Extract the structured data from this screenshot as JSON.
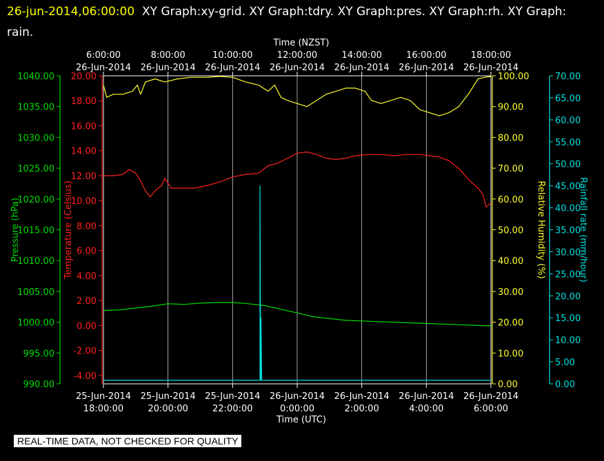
{
  "header": {
    "timestamp": "26-jun-2014,06:00:00",
    "title": "XY Graph:xy-grid.  XY Graph:tdry.  XY Graph:pres.  XY Graph:rh.  XY Graph: rain."
  },
  "qc_notice": "REAL-TIME DATA, NOT CHECKED FOR QUALITY",
  "colors": {
    "pressure": "#00dd00",
    "temperature": "#ff2020",
    "humidity": "#ffff30",
    "rain": "#00e0e0",
    "grid": "#d0d0d0"
  },
  "chart_data": {
    "type": "line",
    "top_axis": {
      "label": "Time (NZST)",
      "ticks": [
        {
          "time": "6:00:00",
          "date": "26-Jun-2014"
        },
        {
          "time": "8:00:00",
          "date": "26-Jun-2014"
        },
        {
          "time": "10:00:00",
          "date": "26-Jun-2014"
        },
        {
          "time": "12:00:00",
          "date": "26-Jun-2014"
        },
        {
          "time": "14:00:00",
          "date": "26-Jun-2014"
        },
        {
          "time": "16:00:00",
          "date": "26-Jun-2014"
        },
        {
          "time": "18:00:00",
          "date": "26-Jun-2014"
        }
      ]
    },
    "bottom_axis": {
      "label": "Time (UTC)",
      "ticks": [
        {
          "date": "25-Jun-2014",
          "time": "18:00:00"
        },
        {
          "date": "25-Jun-2014",
          "time": "20:00:00"
        },
        {
          "date": "25-Jun-2014",
          "time": "22:00:00"
        },
        {
          "date": "26-Jun-2014",
          "time": "0:00:00"
        },
        {
          "date": "26-Jun-2014",
          "time": "2:00:00"
        },
        {
          "date": "26-Jun-2014",
          "time": "4:00:00"
        },
        {
          "date": "26-Jun-2014",
          "time": "6:00:00"
        }
      ]
    },
    "x_range_utc_hours": [
      18,
      30
    ],
    "axes": {
      "pressure": {
        "label": "Pressure (hPa)",
        "range": [
          990,
          1040
        ],
        "ticks": [
          "1040.00",
          "1035.00",
          "1030.00",
          "1025.00",
          "1020.00",
          "1015.00",
          "1010.00",
          "1005.00",
          "1000.00",
          "995.00",
          "990.00"
        ]
      },
      "temperature": {
        "label": "Temperature (Celsius)",
        "range": [
          -4.67,
          20
        ],
        "ticks": [
          "20.00",
          "18.00",
          "16.00",
          "14.00",
          "12.00",
          "10.00",
          "8.00",
          "6.00",
          "4.00",
          "2.00",
          "0.00",
          "-2.00",
          "-4.00"
        ]
      },
      "humidity": {
        "label": "Relative Humidity (%)",
        "range": [
          0,
          100
        ],
        "ticks": [
          "100.00",
          "90.00",
          "80.00",
          "70.00",
          "60.00",
          "50.00",
          "40.00",
          "30.00",
          "20.00",
          "10.00",
          "0.00"
        ]
      },
      "rain": {
        "label": "Rainfall rate (mm/hour)",
        "range": [
          0,
          70
        ],
        "ticks": [
          "70.00",
          "65.00",
          "60.00",
          "55.00",
          "50.00",
          "45.00",
          "40.00",
          "35.00",
          "30.00",
          "25.00",
          "20.00",
          "15.00",
          "10.00",
          "5.00",
          "0.00"
        ]
      }
    },
    "series": [
      {
        "name": "rh",
        "axis": "humidity",
        "points": [
          [
            18,
            97
          ],
          [
            18.1,
            93
          ],
          [
            18.3,
            94
          ],
          [
            18.6,
            94
          ],
          [
            18.9,
            95
          ],
          [
            19.05,
            97
          ],
          [
            19.15,
            94
          ],
          [
            19.3,
            98
          ],
          [
            19.6,
            99
          ],
          [
            19.9,
            98
          ],
          [
            20.3,
            99
          ],
          [
            20.7,
            99.5
          ],
          [
            21.2,
            99.5
          ],
          [
            21.6,
            99.8
          ],
          [
            22,
            99.5
          ],
          [
            22.4,
            98
          ],
          [
            22.8,
            97
          ],
          [
            23.1,
            95
          ],
          [
            23.3,
            97
          ],
          [
            23.5,
            93
          ],
          [
            23.7,
            92
          ],
          [
            24,
            91
          ],
          [
            24.3,
            90
          ],
          [
            24.6,
            92
          ],
          [
            24.9,
            94
          ],
          [
            25.2,
            95
          ],
          [
            25.5,
            96
          ],
          [
            25.8,
            96
          ],
          [
            26.1,
            95
          ],
          [
            26.3,
            92
          ],
          [
            26.6,
            91
          ],
          [
            26.9,
            92
          ],
          [
            27.2,
            93
          ],
          [
            27.5,
            92
          ],
          [
            27.8,
            89
          ],
          [
            28.1,
            88
          ],
          [
            28.4,
            87
          ],
          [
            28.7,
            88
          ],
          [
            29,
            90
          ],
          [
            29.3,
            94
          ],
          [
            29.6,
            99
          ],
          [
            29.8,
            99.5
          ],
          [
            30,
            99.8
          ]
        ]
      },
      {
        "name": "tdry",
        "axis": "temperature",
        "points": [
          [
            18,
            12
          ],
          [
            18.3,
            12
          ],
          [
            18.6,
            12.1
          ],
          [
            18.8,
            12.5
          ],
          [
            19,
            12.2
          ],
          [
            19.1,
            11.8
          ],
          [
            19.2,
            11.3
          ],
          [
            19.3,
            10.8
          ],
          [
            19.45,
            10.3
          ],
          [
            19.6,
            10.8
          ],
          [
            19.8,
            11.2
          ],
          [
            19.9,
            11.8
          ],
          [
            20.1,
            11
          ],
          [
            20.4,
            11
          ],
          [
            20.8,
            11
          ],
          [
            21.2,
            11.2
          ],
          [
            21.6,
            11.5
          ],
          [
            22,
            11.9
          ],
          [
            22.4,
            12.1
          ],
          [
            22.8,
            12.2
          ],
          [
            23.1,
            12.8
          ],
          [
            23.4,
            13
          ],
          [
            23.7,
            13.4
          ],
          [
            24,
            13.8
          ],
          [
            24.3,
            13.9
          ],
          [
            24.6,
            13.7
          ],
          [
            24.9,
            13.4
          ],
          [
            25.2,
            13.3
          ],
          [
            25.5,
            13.4
          ],
          [
            25.8,
            13.6
          ],
          [
            26.2,
            13.7
          ],
          [
            26.6,
            13.7
          ],
          [
            27,
            13.6
          ],
          [
            27.4,
            13.7
          ],
          [
            27.8,
            13.7
          ],
          [
            28.1,
            13.6
          ],
          [
            28.4,
            13.5
          ],
          [
            28.7,
            13.2
          ],
          [
            29,
            12.6
          ],
          [
            29.3,
            11.7
          ],
          [
            29.6,
            11
          ],
          [
            29.75,
            10.5
          ],
          [
            29.85,
            9.5
          ],
          [
            30,
            9.8
          ]
        ]
      },
      {
        "name": "pres",
        "axis": "pressure",
        "points": [
          [
            18,
            1001.9
          ],
          [
            18.5,
            1002
          ],
          [
            19,
            1002.3
          ],
          [
            19.5,
            1002.6
          ],
          [
            20,
            1003
          ],
          [
            20.5,
            1002.9
          ],
          [
            21,
            1003.1
          ],
          [
            21.5,
            1003.2
          ],
          [
            22,
            1003.2
          ],
          [
            22.5,
            1003
          ],
          [
            23,
            1002.7
          ],
          [
            23.5,
            1002.1
          ],
          [
            24,
            1001.5
          ],
          [
            24.5,
            1000.9
          ],
          [
            25,
            1000.6
          ],
          [
            25.5,
            1000.3
          ],
          [
            26,
            1000.2
          ],
          [
            26.5,
            1000.1
          ],
          [
            27,
            1000
          ],
          [
            27.5,
            999.9
          ],
          [
            28,
            999.8
          ],
          [
            28.5,
            999.7
          ],
          [
            29,
            999.6
          ],
          [
            29.5,
            999.5
          ],
          [
            30,
            999.4
          ]
        ]
      },
      {
        "name": "rain",
        "axis": "rain",
        "points": [
          [
            18,
            0.8
          ],
          [
            22.85,
            0.8
          ],
          [
            22.85,
            45
          ],
          [
            22.87,
            0.8
          ],
          [
            22.88,
            15
          ],
          [
            22.9,
            0.8
          ],
          [
            30,
            0.8
          ]
        ]
      }
    ]
  }
}
